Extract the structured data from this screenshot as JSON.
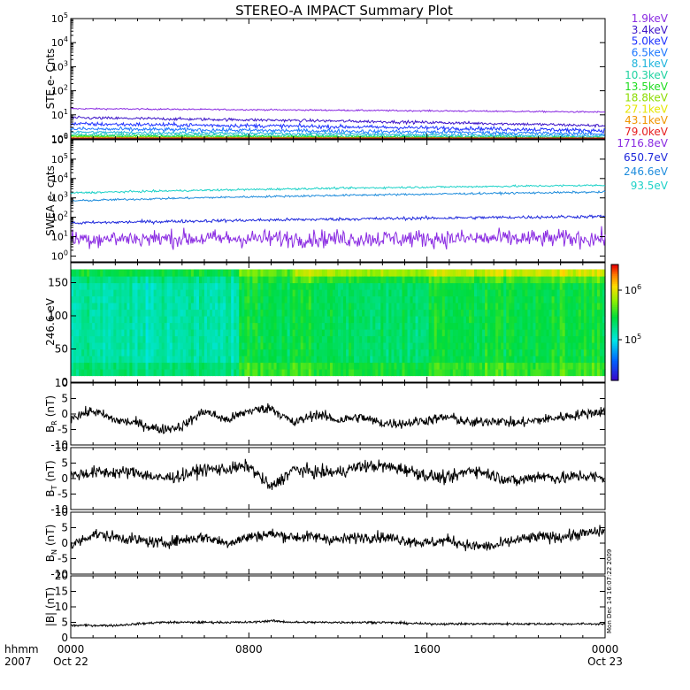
{
  "chart_data": {
    "type": "line",
    "title": "STEREO-A IMPACT Summary Plot",
    "stamp": "Mon Dec 14 16:07:22 2009",
    "time_axis": {
      "label_row1": "hhmm",
      "label_row2": "2007",
      "ticks": [
        {
          "hour": 0,
          "row1": "0000",
          "row2": "Oct 22"
        },
        {
          "hour": 8,
          "row1": "0800",
          "row2": ""
        },
        {
          "hour": 16,
          "row1": "1600",
          "row2": ""
        },
        {
          "hour": 24,
          "row1": "0000",
          "row2": "Oct 23"
        }
      ],
      "range_hours": [
        0,
        24
      ]
    },
    "panels": [
      {
        "id": "ste",
        "ylabel": "STE e- Cnts",
        "scale": "log",
        "ylim_exp": [
          0,
          5
        ],
        "yticks": [
          {
            "exp": 0,
            "label": "10",
            "sup": "0"
          },
          {
            "exp": 1,
            "label": "10",
            "sup": "1"
          },
          {
            "exp": 2,
            "label": "10",
            "sup": "2"
          },
          {
            "exp": 3,
            "label": "10",
            "sup": "3"
          },
          {
            "exp": 4,
            "label": "10",
            "sup": "4"
          },
          {
            "exp": 5,
            "label": "10",
            "sup": "5"
          }
        ],
        "series": [
          {
            "name": "1.9keV",
            "color": "#8a2be2",
            "start": 18,
            "end": 13,
            "noise": 0.03
          },
          {
            "name": "3.4keV",
            "color": "#3c14c8",
            "start": 7.5,
            "end": 3.5,
            "noise": 0.06
          },
          {
            "name": "5.0keV",
            "color": "#1e32ff",
            "start": 4.2,
            "end": 2.2,
            "noise": 0.08
          },
          {
            "name": "6.5keV",
            "color": "#1e78ff",
            "start": 2.6,
            "end": 1.6,
            "noise": 0.08
          },
          {
            "name": "8.1keV",
            "color": "#1eb4dc",
            "start": 1.9,
            "end": 1.3,
            "noise": 0.06
          },
          {
            "name": "10.3keV",
            "color": "#1ed2a0",
            "start": 1.5,
            "end": 1.15,
            "noise": 0.05
          },
          {
            "name": "13.5keV",
            "color": "#1edc1e",
            "start": 1.3,
            "end": 1.1,
            "noise": 0.04
          },
          {
            "name": "18.8keV",
            "color": "#8cdc00",
            "start": 1.2,
            "end": 1.05,
            "noise": 0.03
          },
          {
            "name": "27.1keV",
            "color": "#e6e600",
            "start": 1.1,
            "end": 1.0,
            "noise": 0.02
          },
          {
            "name": "43.1keV",
            "color": "#f09600",
            "start": 1.05,
            "end": 1.0,
            "noise": 0.02
          },
          {
            "name": "79.0keV",
            "color": "#e61e1e",
            "start": 1.02,
            "end": 1.0,
            "noise": 0.01
          }
        ]
      },
      {
        "id": "swea",
        "ylabel": "SWEA e- cnts",
        "scale": "log",
        "ylim_exp": [
          -0.3,
          6
        ],
        "yticks": [
          {
            "exp": 0,
            "label": "10",
            "sup": "0"
          },
          {
            "exp": 1,
            "label": "10",
            "sup": "1"
          },
          {
            "exp": 2,
            "label": "10",
            "sup": "2"
          },
          {
            "exp": 3,
            "label": "10",
            "sup": "3"
          },
          {
            "exp": 4,
            "label": "10",
            "sup": "4"
          },
          {
            "exp": 5,
            "label": "10",
            "sup": "5"
          },
          {
            "exp": 6,
            "label": "10",
            "sup": "6"
          }
        ],
        "series": [
          {
            "name": "1716.8eV",
            "color": "#8a2be2",
            "start": 8,
            "end": 8,
            "noise": 0.45
          },
          {
            "name": "650.7eV",
            "color": "#1e28dc",
            "start": 50,
            "end": 110,
            "noise": 0.08
          },
          {
            "name": "246.6eV",
            "color": "#1e8cdc",
            "start": 700,
            "end": 2000,
            "noise": 0.05
          },
          {
            "name": "93.5eV",
            "color": "#1ed2c8",
            "start": 1800,
            "end": 4500,
            "noise": 0.05
          }
        ]
      },
      {
        "id": "pad",
        "ylabel": "246.6 eV",
        "type": "heatmap",
        "ylim": [
          0,
          180
        ],
        "yticks": [
          0,
          50,
          100,
          150
        ],
        "colorbar_ticks": [
          {
            "label": "10",
            "sup": "5"
          },
          {
            "label": "10",
            "sup": "6"
          }
        ]
      },
      {
        "id": "br",
        "ylabel": "B",
        "ylabel_sub": "R",
        "ylabel_unit": "(nT)",
        "ylim": [
          -10,
          10
        ],
        "yticks": [
          -10,
          -5,
          0,
          5,
          10
        ],
        "anchors": [
          [
            0,
            -1
          ],
          [
            1,
            1
          ],
          [
            2,
            -2
          ],
          [
            3,
            -3
          ],
          [
            4,
            -5
          ],
          [
            5,
            -4
          ],
          [
            6,
            1
          ],
          [
            7,
            -2
          ],
          [
            8,
            1
          ],
          [
            9,
            2
          ],
          [
            10,
            -3
          ],
          [
            11,
            0
          ],
          [
            12,
            -2
          ],
          [
            13,
            -1
          ],
          [
            14,
            -3
          ],
          [
            15,
            -3
          ],
          [
            16,
            -2
          ],
          [
            17,
            -1
          ],
          [
            18,
            -3
          ],
          [
            19,
            -2
          ],
          [
            20,
            -3
          ],
          [
            21,
            -2
          ],
          [
            22,
            -1
          ],
          [
            23,
            0
          ],
          [
            24,
            1
          ]
        ],
        "noise": 1.6
      },
      {
        "id": "bt",
        "ylabel": "B",
        "ylabel_sub": "T",
        "ylabel_unit": "(nT)",
        "ylim": [
          -10,
          10
        ],
        "yticks": [
          -10,
          -5,
          0,
          5,
          10
        ],
        "anchors": [
          [
            0,
            1
          ],
          [
            1,
            2
          ],
          [
            2,
            2
          ],
          [
            3,
            2
          ],
          [
            4,
            0
          ],
          [
            5,
            1
          ],
          [
            6,
            3
          ],
          [
            7,
            3
          ],
          [
            8,
            4
          ],
          [
            9,
            -3
          ],
          [
            10,
            3
          ],
          [
            11,
            2
          ],
          [
            12,
            2
          ],
          [
            13,
            4
          ],
          [
            14,
            4
          ],
          [
            15,
            3
          ],
          [
            16,
            1
          ],
          [
            17,
            0
          ],
          [
            18,
            3
          ],
          [
            19,
            1
          ],
          [
            20,
            -1
          ],
          [
            21,
            1
          ],
          [
            22,
            0
          ],
          [
            23,
            1
          ],
          [
            24,
            0
          ]
        ],
        "noise": 2.0
      },
      {
        "id": "bn",
        "ylabel": "B",
        "ylabel_sub": "N",
        "ylabel_unit": "(nT)",
        "ylim": [
          -10,
          10
        ],
        "yticks": [
          -10,
          -5,
          0,
          5,
          10
        ],
        "anchors": [
          [
            0,
            -1
          ],
          [
            1,
            3
          ],
          [
            2,
            2
          ],
          [
            3,
            1
          ],
          [
            4,
            0
          ],
          [
            5,
            1
          ],
          [
            6,
            2
          ],
          [
            7,
            0
          ],
          [
            8,
            2
          ],
          [
            9,
            3
          ],
          [
            10,
            2
          ],
          [
            11,
            2
          ],
          [
            12,
            1
          ],
          [
            13,
            2
          ],
          [
            14,
            2
          ],
          [
            15,
            1
          ],
          [
            16,
            0
          ],
          [
            17,
            1
          ],
          [
            18,
            -1
          ],
          [
            19,
            -1
          ],
          [
            20,
            1
          ],
          [
            21,
            2
          ],
          [
            22,
            2
          ],
          [
            23,
            3
          ],
          [
            24,
            4
          ]
        ],
        "noise": 1.8
      },
      {
        "id": "bmag",
        "ylabel": "|B| (nT)",
        "ylim": [
          0,
          20
        ],
        "yticks": [
          0,
          5,
          10,
          15,
          20
        ],
        "anchors": [
          [
            0,
            4
          ],
          [
            2,
            4
          ],
          [
            4,
            5
          ],
          [
            6,
            5
          ],
          [
            8,
            5
          ],
          [
            9,
            5.5
          ],
          [
            10,
            5
          ],
          [
            12,
            5
          ],
          [
            14,
            5
          ],
          [
            16,
            4.5
          ],
          [
            18,
            4.5
          ],
          [
            20,
            4.5
          ],
          [
            22,
            4.5
          ],
          [
            24,
            4.5
          ]
        ],
        "noise": 0.35
      }
    ]
  }
}
